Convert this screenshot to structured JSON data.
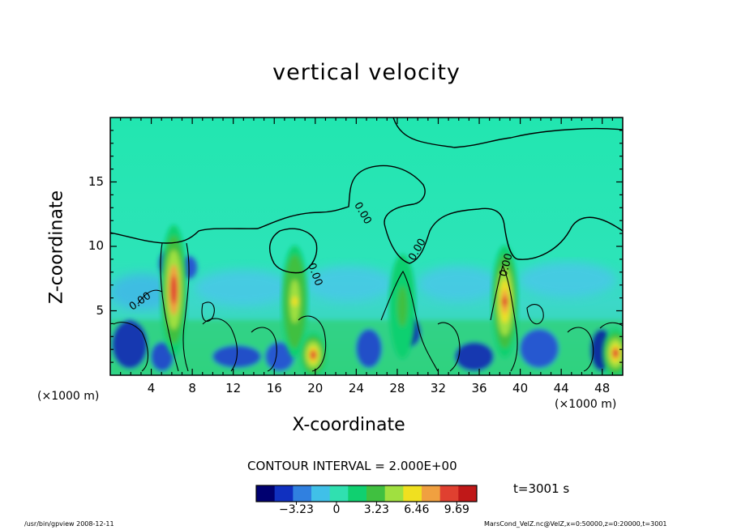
{
  "chart_data": {
    "type": "heatmap",
    "title": "vertical velocity",
    "xlabel": "X-coordinate",
    "ylabel": "Z-coordinate",
    "x_unit_left": "(×1000 m)",
    "x_unit_right": "(×1000 m)",
    "xlim": [
      0,
      50
    ],
    "ylim": [
      0,
      20
    ],
    "x_ticks": [
      "4",
      "8",
      "12",
      "16",
      "20",
      "24",
      "28",
      "32",
      "36",
      "40",
      "44",
      "48"
    ],
    "x_tick_values": [
      4,
      8,
      12,
      16,
      20,
      24,
      28,
      32,
      36,
      40,
      44,
      48
    ],
    "y_ticks": [
      "5",
      "10",
      "15"
    ],
    "y_tick_values": [
      5,
      10,
      15
    ],
    "contour_label": "0.00",
    "contour_interval": "CONTOUR INTERVAL = 2.000E+00",
    "colorbar": {
      "ticks": [
        "−3.23",
        "0",
        "3.23",
        "6.46",
        "9.69"
      ],
      "tick_values": [
        -3.23,
        0,
        3.23,
        6.46,
        9.69
      ],
      "range": [
        -6.46,
        11.3
      ],
      "colors": [
        "#000070",
        "#1030c0",
        "#3080e0",
        "#40c0e8",
        "#30e0b0",
        "#10d070",
        "#40c040",
        "#a0e040",
        "#f0e020",
        "#f0a040",
        "#e04030",
        "#c01818"
      ]
    },
    "convective_cells": [
      {
        "x": 6.2,
        "z_top": 10.2,
        "w_max": 9.7
      },
      {
        "x": 18.0,
        "z_top": 8.8,
        "w_max": 6.0
      },
      {
        "x": 28.5,
        "z_top": 8.2,
        "w_max": 3.5
      },
      {
        "x": 38.5,
        "z_top": 8.8,
        "w_max": 9.0
      },
      {
        "x": 19.8,
        "z_top": 3.5,
        "w_max": 9.0
      },
      {
        "x": 49.3,
        "z_top": 3.8,
        "w_max": 9.0
      }
    ],
    "time": "t=3001 s"
  },
  "footer": {
    "left": "/usr/bin/gpview   2008-12-11",
    "right": "MarsCond_VelZ.nc@VelZ,x=0:50000,z=0:20000,t=3001"
  }
}
